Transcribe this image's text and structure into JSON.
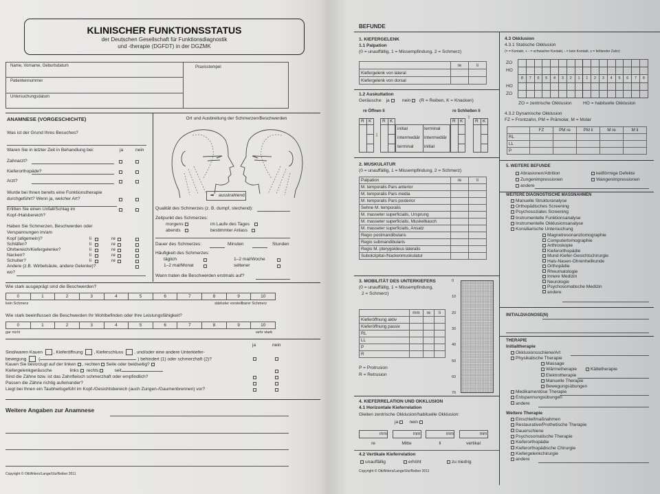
{
  "left": {
    "title": "KLINISCHER FUNKTIONSSTATUS",
    "subtitle1": "der Deutschen Gesellschaft für Funktionsdiagnostik",
    "subtitle2": "und -therapie (DGFDT) in der DGZMK",
    "patient": {
      "name": "Name, Vorname, Geburtsdatum",
      "number": "Patientennummer",
      "date": "Untersuchungsdatum",
      "stamp": "Praxisstempel"
    },
    "anamnese": {
      "heading": "ANAMNESE (VORGESCHICHTE)",
      "reason": "Was ist der Grund Ihres Besuches?",
      "treatment_q": "Waren Sie in letzter Zeit in Behandlung bei:",
      "ja": "ja",
      "nein": "nein",
      "treat_items": [
        "Zahnarzt?",
        "Kieferorthopäde?",
        "Arzt?"
      ],
      "functherapy_1": "Wurde bei Ihnen bereits eine Funktionstherapie",
      "functherapy_2": "durchgeführt? Wenn ja, welcher Art?",
      "accident_1": "Erlitten Sie einen Unfall/Schlag im",
      "accident_2": "Kopf-/Halsbereich?",
      "pain_q1": "Haben Sie Schmerzen, Beschwerden oder",
      "pain_q2": "Verspannungen im/am",
      "pain_items": [
        "Kopf (allgemein)?",
        "Schläfen?",
        "Ohrbereich/Kiefergelenke?",
        "Nacken?",
        "Schulter?"
      ],
      "li": "li",
      "re": "re",
      "other": "Andere (z.B. Wirbelsäule, andere Gelenke)?",
      "where": "wo?"
    },
    "location": {
      "title": "Ort und Ausbreitung der Schmerzen/Beschwerden",
      "radiating": "ausstrahlend",
      "quality": "Qualität des Schmerzes (z. B. dumpf, stechend):",
      "timing": "Zeitpunkt des Schmerzes:",
      "morning": "morgens",
      "evening": "abends",
      "during_day": "im Laufe des Tages",
      "occasion": "bestimmter Anlass",
      "duration": "Dauer des Schmerzes:",
      "minutes": "Minuten",
      "hours": "Stunden",
      "frequency": "Häufigkeit des Schmerzes:",
      "daily": "täglich",
      "weekly": "1–2 mal/Woche",
      "monthly": "1–2 mal/Monat",
      "rarer": "seltener",
      "onset": "Wann traten die Beschwerden erstmals auf?"
    },
    "scales": {
      "q1": "Wie stark ausgeprägt sind die Beschwerden?",
      "q1_min": "kein Schmerz",
      "q1_max": "stärkster vorstellbarer Schmerz",
      "q2": "Wie stark beeinflussen die Beschwerden Ihr Wohlbefinden oder Ihre Leistungsfähigkeit?",
      "q2_min": "gar nicht",
      "q2_max": "sehr stark",
      "values": [
        "0",
        "1",
        "2",
        "3",
        "4",
        "5",
        "6",
        "7",
        "8",
        "9",
        "10"
      ]
    },
    "questions": {
      "ja": "ja",
      "nein": "nein",
      "q1a": "Sind/waren Kauen",
      "q1b": ", Kieferöffnung",
      "q1c": ", Kieferschluss",
      "q1d": ", und/oder eine andere Unterkiefer-",
      "q1e": "bewegung",
      "q1f": "(",
      "q1g": ") behindert (1) oder schmerzhaft (2)?",
      "q2": "Kauen Sie bevorzugt auf der linken",
      "q2b": ", rechten",
      "q2c": "Seite oder beidseitig?",
      "q3": "Kiefergelenkgeräusche",
      "q3_left": "links",
      "q3_right": "rechts",
      "q3_since": "seit",
      "q4": "Sind die Zähne bzw. ist das Zahnfleisch schmerzhaft oder empfindlich?",
      "q5": "Passen die Zähne richtig aufeinander?",
      "q6": "Liegt bei Ihnen ein Taubheitsgefühl im Kopf-/Gesichtsbereich (auch Zungen-/Gaumenbrennen) vor?"
    },
    "further": "Weitere Angaben zur Anamnese",
    "copyright": "Copyright © Ott/Ahlers/Lange/Utz/Reiber 2011"
  },
  "right": {
    "heading": "BEFUNDE",
    "s1": {
      "title": "1. KIEFERGELENK",
      "palpation": "1.1 Palpation",
      "legend": "(0 = unauffällig, 1 = Missempfindung, 2 = Schmerz)",
      "cols": [
        "re",
        "li"
      ],
      "rows": [
        "Kiefergelenk von lateral",
        "Kiefergelenk von dorsal"
      ],
      "auscultation": "1.2 Auskultation",
      "noises": "Geräusche:",
      "ja": "ja",
      "nein": "nein",
      "noise_legend": "(R = Reiben, K = Knacken)",
      "opening": "re  Öffnen  li",
      "closing": "re  Schließen  li",
      "R": "R",
      "K": "K",
      "phases_open": [
        "initial",
        "intermediär",
        "terminal"
      ],
      "phases_close": [
        "terminal",
        "intermediär",
        "initial"
      ]
    },
    "s2": {
      "title": "2. MUSKULATUR",
      "legend": "(0 = unauffällig, 1 = Missempfindung, 2 = Schmerz)",
      "head": "Palpation",
      "cols": [
        "re",
        "li"
      ],
      "rows": [
        "M. temporalis Pars anterior",
        "M. temporalis Pars media",
        "M. temporalis Pars posterior",
        "Sehne M. temporalis",
        "M. masseter superficialis, Ursprung",
        "M. masseter superficialis, Muskelbauch",
        "M. masseter superficialis, Ansatz",
        "Regio postmandibularis",
        "Regio submandibularis",
        "Regio M. pterygoideus lateralis",
        "Subokzipital-/Nackenmuskulatur"
      ]
    },
    "s3": {
      "title": "3. MOBILITÄT DES UNTERKIEFERS",
      "legend1": "(0 = unauffällig, 1 = Missempfindung,",
      "legend2": "2 = Schmerz)",
      "cols": [
        "mm",
        "re",
        "li"
      ],
      "rows": [
        "Kieferöffnung aktiv",
        "Kieferöffnung passiv",
        "RL",
        "LL",
        "P",
        "R"
      ],
      "p": "P = Protrusion",
      "r": "R = Retrusion",
      "grid_ticks": [
        "0",
        "10",
        "20",
        "30",
        "40",
        "50",
        "60",
        "70"
      ]
    },
    "s4": {
      "title": "4. KIEFERRELATION UND OKKLUSION",
      "h41": "4.1 Horizontale Kieferrelation",
      "glide": "Gleiten zentrische Okklusion/habituelle Okklusion:",
      "ja": "ja",
      "nein": "nein",
      "unit": "mm",
      "boxes": [
        "re",
        "Mitte",
        "li",
        "vertikal"
      ],
      "h42": "4.2 Vertikale Kieferrelation",
      "vertical": [
        "unauffällig",
        "erhöht",
        "zu niedrig"
      ]
    },
    "s43": {
      "title": "4.3 Okklusion",
      "static": "4.3.1 Statische Okklusion",
      "static_legend": "(= = Kontakt, + - = schwacher Kontakt, - = kein Kontakt, x = fehlender Zahn)",
      "row_labels": [
        "ZO",
        "HO",
        "",
        "HO",
        "ZO"
      ],
      "teeth": [
        "8",
        "7",
        "6",
        "5",
        "4",
        "3",
        "2",
        "1",
        "1",
        "2",
        "3",
        "4",
        "5",
        "6",
        "7",
        "8"
      ],
      "zo": "ZO = zentrische Okklusion",
      "ho": "HO = habituelle Okklusion",
      "dynamic": "4.3.2 Dynamische Okklusion",
      "dyn_legend": "FZ = Frontzahn, PM = Prämolar, M = Molar",
      "dyn_cols": [
        "FZ",
        "PM re",
        "PM li",
        "M re",
        "M li"
      ],
      "dyn_rows": [
        "RL",
        "LL",
        "P"
      ]
    },
    "s5": {
      "title": "5. WEITERE BEFUNDE",
      "items": [
        "Abrasionen/Attrition",
        "keilförmige Defekte",
        "Zungenimpressionen",
        "Wangenimpressionen",
        "andere"
      ]
    },
    "diag": {
      "title": "WEITERE DIAGNOSTISCHE MASSNAHMEN",
      "items": [
        "Manuelle Strukturanalyse",
        "Orthopädisches Screening",
        "Psychosoziales Screening",
        "Instrumentelle Funktionsanalyse",
        "Instrumentelle Okklusionsanalyse",
        "Konsiliarische Untersuchung"
      ],
      "sub": [
        "Magnetresonanztomographie",
        "Computertomographie",
        "Arthroskopie",
        "Kieferorthopädie",
        "Mund-Kiefer-Gesichtschirurgie",
        "Hals-Nasen-Ohrenheilkunde",
        "Orthopädie",
        "Rheumatologie",
        "Innere Medizin",
        "Neurologie",
        "Psychosomatische Medizin",
        "andere"
      ]
    },
    "initial_diag": "INITIALDIAGNOSE(N)",
    "therapy": {
      "title": "THERAPIE",
      "initial": "Initialtherapie",
      "items": [
        "Okklusionsschiene/Art",
        "Physikalische Therapie"
      ],
      "phys": [
        "Massage",
        "Wärmetherapie",
        "Elektrotherapie",
        "Manuelle Therapie",
        "Bewegungsübungen"
      ],
      "cold": "Kältetherapie",
      "items2": [
        "Medikamentöse Therapie",
        "Entspannungsübungen",
        "andere"
      ],
      "further": "Weitere Therapie",
      "further_items": [
        "Einschleifmaßnahmen",
        "Restaurative/Prothetische Therapie",
        "Dauerschiene",
        "Psychosomatische Therapie",
        "Kieferorthopädie",
        "Kieferorthopädische Chirurgie",
        "Kiefergelenkchirurgie",
        "andere"
      ]
    },
    "copyright": "Copyright © Ott/Ahlers/Lange/Utz/Reiber 2011"
  }
}
